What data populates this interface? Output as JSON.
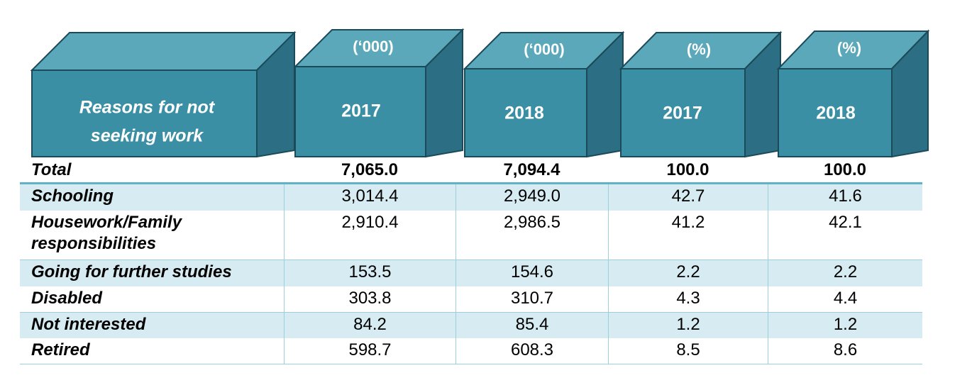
{
  "header": {
    "title_line1": "Reasons for not",
    "title_line2": "seeking work",
    "columns": [
      {
        "unit": "(‘000)",
        "year": "2017"
      },
      {
        "unit": "(‘000)",
        "year": "2018"
      },
      {
        "unit": "(%)",
        "year": "2017"
      },
      {
        "unit": "(%)",
        "year": "2018"
      }
    ]
  },
  "colors": {
    "box_front": "#3a8fa5",
    "box_top": "#5aa8b9",
    "box_side": "#2c6e83",
    "box_edge": "#1b4a5a",
    "row_shade": "#d6ecf2"
  },
  "rows": [
    {
      "label": [
        "Total"
      ],
      "values": [
        "7,065.0",
        "7,094.4",
        "100.0",
        "100.0"
      ]
    },
    {
      "label": [
        "Schooling"
      ],
      "values": [
        "3,014.4",
        "2,949.0",
        "42.7",
        "41.6"
      ]
    },
    {
      "label": [
        "Housework/Family",
        "responsibilities"
      ],
      "values": [
        "2,910.4",
        "2,986.5",
        "41.2",
        "42.1"
      ]
    },
    {
      "label": [
        "Going for further studies"
      ],
      "values": [
        "153.5",
        "154.6",
        "2.2",
        "2.2"
      ]
    },
    {
      "label": [
        "Disabled"
      ],
      "values": [
        "303.8",
        "310.7",
        "4.3",
        "4.4"
      ]
    },
    {
      "label": [
        "Not interested"
      ],
      "values": [
        "84.2",
        "85.4",
        "1.2",
        "1.2"
      ]
    },
    {
      "label": [
        "Retired"
      ],
      "values": [
        "598.7",
        "608.3",
        "8.5",
        "8.6"
      ]
    }
  ]
}
